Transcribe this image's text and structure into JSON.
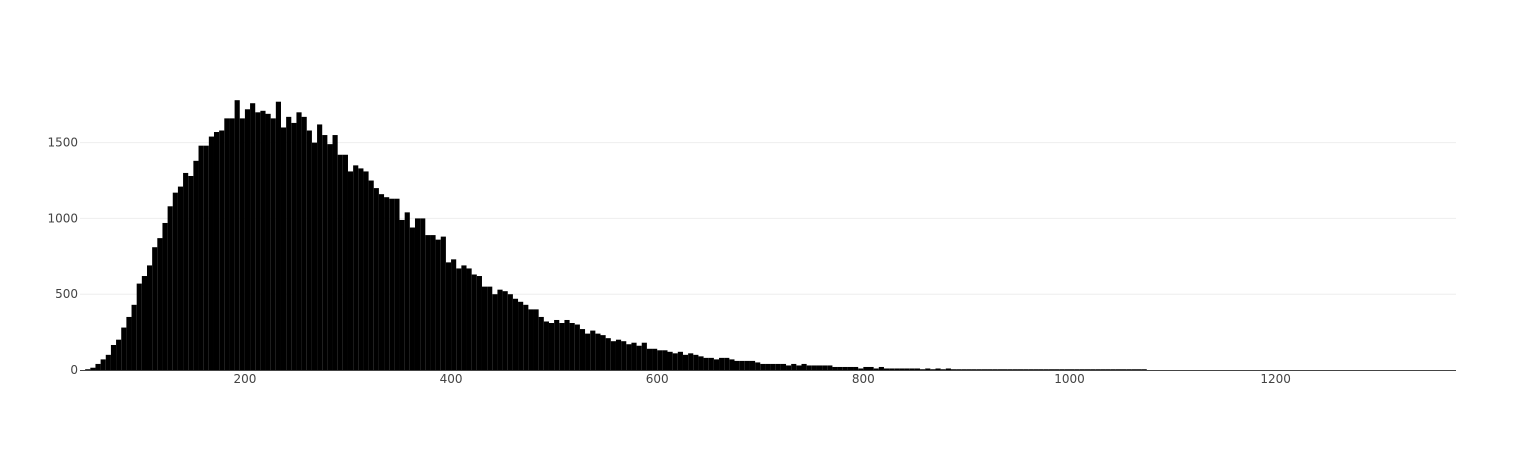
{
  "chart_data": {
    "type": "bar",
    "title": "",
    "xlabel": "",
    "ylabel": "",
    "xlim": [
      40,
      1375
    ],
    "ylim": [
      0,
      1900
    ],
    "bin_width": 5,
    "xticks": [
      200,
      400,
      600,
      800,
      1000,
      1200
    ],
    "yticks": [
      0,
      500,
      1000,
      1500
    ],
    "xtick_labels": [
      "200",
      "400",
      "600",
      "800",
      "1000",
      "1200"
    ],
    "ytick_labels": [
      "0",
      "500",
      "1000",
      "1500"
    ],
    "grid": true,
    "bar_color": "#000000",
    "bin_starts": [
      45,
      50,
      55,
      60,
      65,
      70,
      75,
      80,
      85,
      90,
      95,
      100,
      105,
      110,
      115,
      120,
      125,
      130,
      135,
      140,
      145,
      150,
      155,
      160,
      165,
      170,
      175,
      180,
      185,
      190,
      195,
      200,
      205,
      210,
      215,
      220,
      225,
      230,
      235,
      240,
      245,
      250,
      255,
      260,
      265,
      270,
      275,
      280,
      285,
      290,
      295,
      300,
      305,
      310,
      315,
      320,
      325,
      330,
      335,
      340,
      345,
      350,
      355,
      360,
      365,
      370,
      375,
      380,
      385,
      390,
      395,
      400,
      405,
      410,
      415,
      420,
      425,
      430,
      435,
      440,
      445,
      450,
      455,
      460,
      465,
      470,
      475,
      480,
      485,
      490,
      495,
      500,
      505,
      510,
      515,
      520,
      525,
      530,
      535,
      540,
      545,
      550,
      555,
      560,
      565,
      570,
      575,
      580,
      585,
      590,
      595,
      600,
      605,
      610,
      615,
      620,
      625,
      630,
      635,
      640,
      645,
      650,
      655,
      660,
      665,
      670,
      675,
      680,
      685,
      690,
      695,
      700,
      705,
      710,
      715,
      720,
      725,
      730,
      735,
      740,
      745,
      750,
      755,
      760,
      765,
      770,
      775,
      780,
      785,
      790,
      795,
      800,
      805,
      810,
      815,
      820,
      825,
      830,
      835,
      840,
      845,
      850,
      855,
      860,
      865,
      870,
      875,
      880,
      885,
      890,
      895,
      900,
      905,
      910,
      915,
      920,
      925,
      930,
      935,
      940,
      945,
      950,
      955,
      960,
      965,
      970,
      975,
      980,
      985,
      990,
      995,
      1000,
      1005,
      1010,
      1015,
      1020,
      1025,
      1030,
      1035,
      1040,
      1045,
      1050,
      1055,
      1060,
      1065,
      1070,
      1075
    ],
    "values": [
      5,
      15,
      40,
      70,
      100,
      165,
      200,
      280,
      350,
      430,
      570,
      620,
      690,
      810,
      870,
      970,
      1080,
      1170,
      1210,
      1300,
      1280,
      1380,
      1480,
      1480,
      1540,
      1570,
      1580,
      1660,
      1660,
      1780,
      1660,
      1720,
      1760,
      1700,
      1710,
      1690,
      1660,
      1770,
      1600,
      1670,
      1630,
      1700,
      1670,
      1580,
      1500,
      1620,
      1550,
      1490,
      1550,
      1420,
      1420,
      1310,
      1350,
      1330,
      1310,
      1250,
      1200,
      1160,
      1140,
      1130,
      1130,
      990,
      1040,
      940,
      1000,
      1000,
      890,
      890,
      860,
      880,
      710,
      730,
      670,
      690,
      670,
      630,
      620,
      550,
      550,
      500,
      530,
      520,
      500,
      470,
      450,
      430,
      400,
      400,
      350,
      320,
      310,
      330,
      310,
      330,
      310,
      300,
      270,
      240,
      260,
      240,
      230,
      210,
      190,
      200,
      190,
      170,
      180,
      160,
      180,
      140,
      140,
      130,
      130,
      120,
      110,
      120,
      100,
      110,
      100,
      90,
      80,
      80,
      70,
      80,
      80,
      70,
      60,
      60,
      60,
      60,
      50,
      40,
      40,
      40,
      40,
      40,
      30,
      40,
      30,
      40,
      30,
      30,
      30,
      30,
      30,
      20,
      20,
      20,
      20,
      20,
      10,
      20,
      20,
      10,
      20,
      10,
      10,
      10,
      10,
      10,
      10,
      10,
      5,
      10,
      5,
      10,
      5,
      10,
      5,
      5,
      5,
      5,
      5,
      5,
      5,
      5,
      5,
      5,
      5,
      5,
      5,
      5,
      5,
      5,
      5,
      5,
      5,
      5,
      5,
      5,
      5,
      5,
      5,
      5,
      5,
      5,
      5,
      5,
      5,
      5,
      5,
      5,
      5,
      5,
      5,
      5
    ]
  }
}
